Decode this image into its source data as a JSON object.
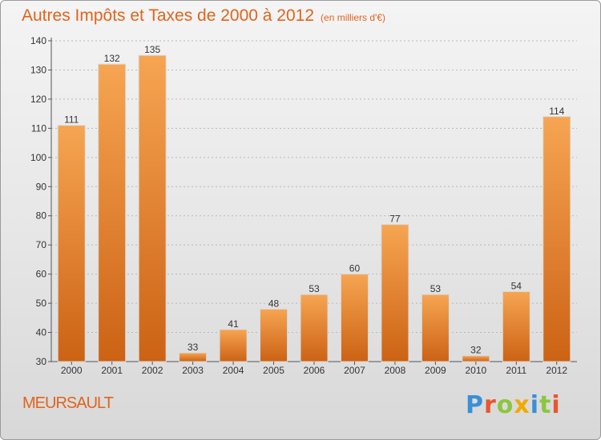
{
  "title": "Autres Impôts et Taxes de 2000 à 2012",
  "title_unit": "(en milliers d'€)",
  "commune": "MEURSAULT",
  "logo": {
    "letters": [
      "P",
      "r",
      "o",
      "x",
      "i",
      "t",
      "i"
    ],
    "colors": [
      "#3a8fd6",
      "#e8562f",
      "#8cc63f",
      "#f2a900",
      "#3a8fd6",
      "#8cc63f",
      "#e8562f"
    ]
  },
  "colors": {
    "title": "#e0641c",
    "bar_top": "#f6a552",
    "bar_bottom": "#cc6214",
    "axis": "#555555",
    "grid": "#b8b8b8"
  },
  "chart_data": {
    "type": "bar",
    "title": "Autres Impôts et Taxes de 2000 à 2012",
    "subtitle": "(en milliers d'€)",
    "xlabel": "",
    "ylabel": "",
    "categories": [
      "2000",
      "2001",
      "2002",
      "2003",
      "2004",
      "2005",
      "2006",
      "2007",
      "2008",
      "2009",
      "2010",
      "2011",
      "2012"
    ],
    "values": [
      111,
      132,
      135,
      33,
      41,
      48,
      53,
      60,
      77,
      53,
      32,
      54,
      114
    ],
    "ylim": [
      30,
      140
    ],
    "yticks": [
      30,
      40,
      50,
      60,
      70,
      80,
      90,
      100,
      110,
      120,
      130,
      140
    ],
    "grid": "horizontal dashed",
    "legend": "none"
  }
}
